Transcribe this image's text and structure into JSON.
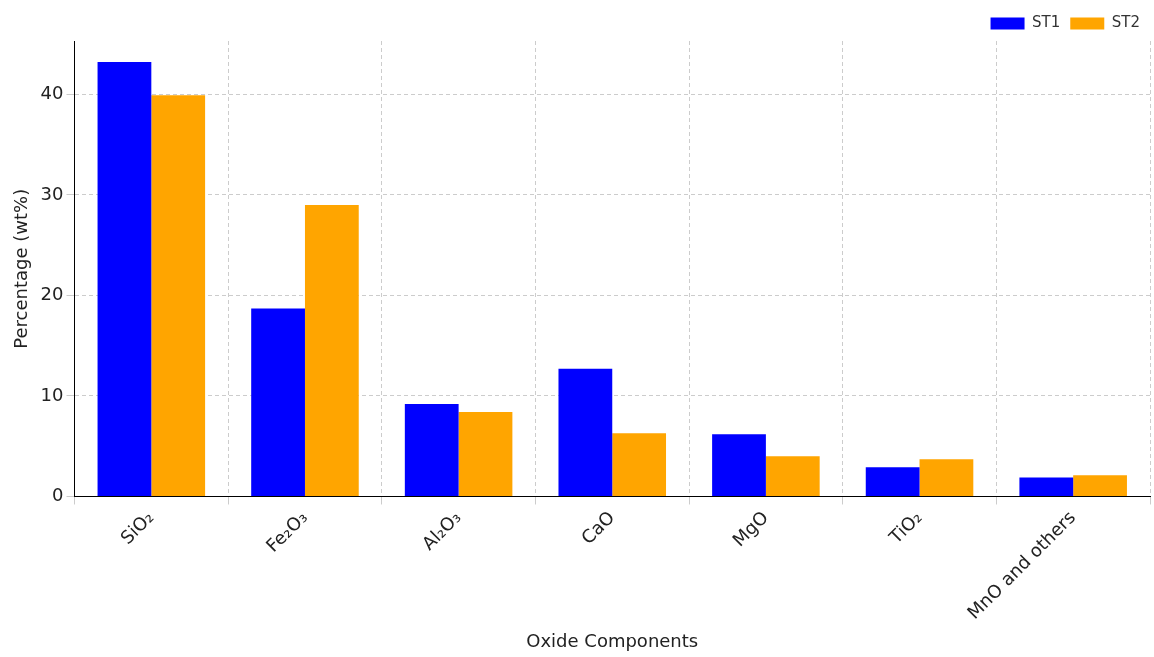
{
  "chart_data": {
    "type": "bar",
    "xlabel": "Oxide Components",
    "ylabel": "Percentage (wt%)",
    "categories": [
      "SiO₂",
      "Fe₂O₃",
      "Al₂O₃",
      "CaO",
      "MgO",
      "TiO₂",
      "MnO and others"
    ],
    "series": [
      {
        "name": "ST1",
        "color": "#0000ff",
        "values": [
          43.2,
          18.7,
          9.2,
          12.7,
          6.2,
          2.9,
          1.9
        ]
      },
      {
        "name": "ST2",
        "color": "#ffa500",
        "values": [
          39.9,
          29.0,
          8.4,
          6.3,
          4.0,
          3.7,
          2.1
        ]
      }
    ],
    "ylim": [
      0,
      45.3
    ],
    "yticks": [
      0,
      10,
      20,
      30,
      40
    ],
    "grid": true,
    "legend": "top right"
  }
}
